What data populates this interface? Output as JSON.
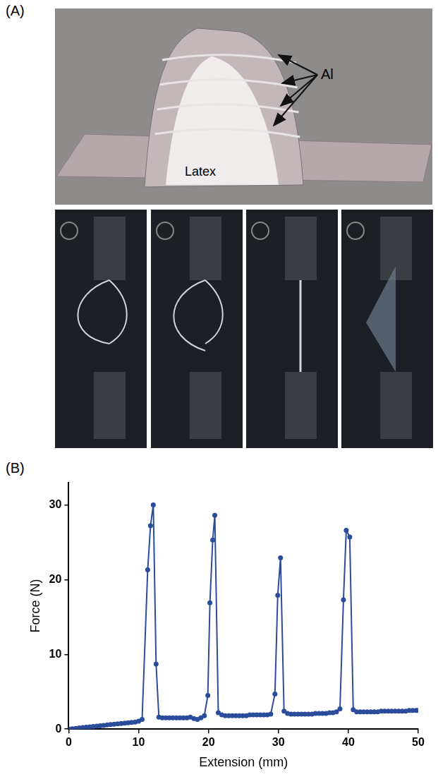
{
  "panels": [
    {
      "label": "(A)",
      "annotations": [
        "Al",
        "Latex"
      ]
    },
    {
      "label": "(B)"
    }
  ],
  "chart_data": {
    "type": "line",
    "color": "#2b4c9b",
    "marker": "circle",
    "line_style": "solid",
    "x_label": "Extension (mm)",
    "y_label": "Force (N)",
    "x": [
      0,
      0.5,
      1,
      1.5,
      2,
      2.5,
      3,
      3.5,
      4,
      4.5,
      5,
      5.5,
      6,
      6.5,
      7,
      7.5,
      8,
      8.5,
      9,
      9.5,
      10,
      10.5,
      11.3,
      11.7,
      12.1,
      12.5,
      12.9,
      13.4,
      13.9,
      14.4,
      14.9,
      15.4,
      15.9,
      16.4,
      16.9,
      17.4,
      17.9,
      18.4,
      18.9,
      19.4,
      19.9,
      20.2,
      20.6,
      20.9,
      21.4,
      21.9,
      22.4,
      22.9,
      23.4,
      23.9,
      24.4,
      24.9,
      25.4,
      25.9,
      26.4,
      26.9,
      27.4,
      27.9,
      28.4,
      28.9,
      29.5,
      29.9,
      30.3,
      30.8,
      31.3,
      31.8,
      32.3,
      32.8,
      33.3,
      33.8,
      34.3,
      34.8,
      35.3,
      35.8,
      36.3,
      36.8,
      37.3,
      37.8,
      38.3,
      38.8,
      39.3,
      39.7,
      40.2,
      40.7,
      41.2,
      41.7,
      42.2,
      42.7,
      43.2,
      43.7,
      44.2,
      44.7,
      45.2,
      45.7,
      46.2,
      46.7,
      47.2,
      47.7,
      48.2,
      48.7,
      49.2,
      49.7,
      50
    ],
    "values": [
      0,
      0.05,
      0.1,
      0.15,
      0.2,
      0.25,
      0.3,
      0.35,
      0.4,
      0.45,
      0.5,
      0.55,
      0.6,
      0.65,
      0.7,
      0.75,
      0.8,
      0.85,
      0.9,
      0.95,
      1.05,
      1.3,
      21.3,
      27.2,
      30,
      8.7,
      1.6,
      1.5,
      1.5,
      1.5,
      1.5,
      1.5,
      1.5,
      1.5,
      1.5,
      1.6,
      1.4,
      1.3,
      1.5,
      1.8,
      4.5,
      16.9,
      25.3,
      28.6,
      2.2,
      1.9,
      1.8,
      1.8,
      1.8,
      1.8,
      1.8,
      1.8,
      1.8,
      1.9,
      1.9,
      1.9,
      1.9,
      1.9,
      1.9,
      2.0,
      4.7,
      17.9,
      22.9,
      2.4,
      2.1,
      2.0,
      2.0,
      2.0,
      2.0,
      2.0,
      2.0,
      2.0,
      2.1,
      2.1,
      2.1,
      2.1,
      2.2,
      2.2,
      2.3,
      2.7,
      17.3,
      26.6,
      25.7,
      2.6,
      2.3,
      2.3,
      2.3,
      2.3,
      2.3,
      2.3,
      2.3,
      2.4,
      2.4,
      2.4,
      2.4,
      2.4,
      2.4,
      2.4,
      2.4,
      2.5,
      2.5,
      2.5,
      2.5
    ],
    "xlim": [
      0,
      50
    ],
    "xticks": [
      0,
      10,
      20,
      30,
      40,
      50
    ],
    "ylim": [
      0,
      33
    ],
    "yticks": [
      0,
      10,
      20,
      30
    ],
    "grid": false
  }
}
